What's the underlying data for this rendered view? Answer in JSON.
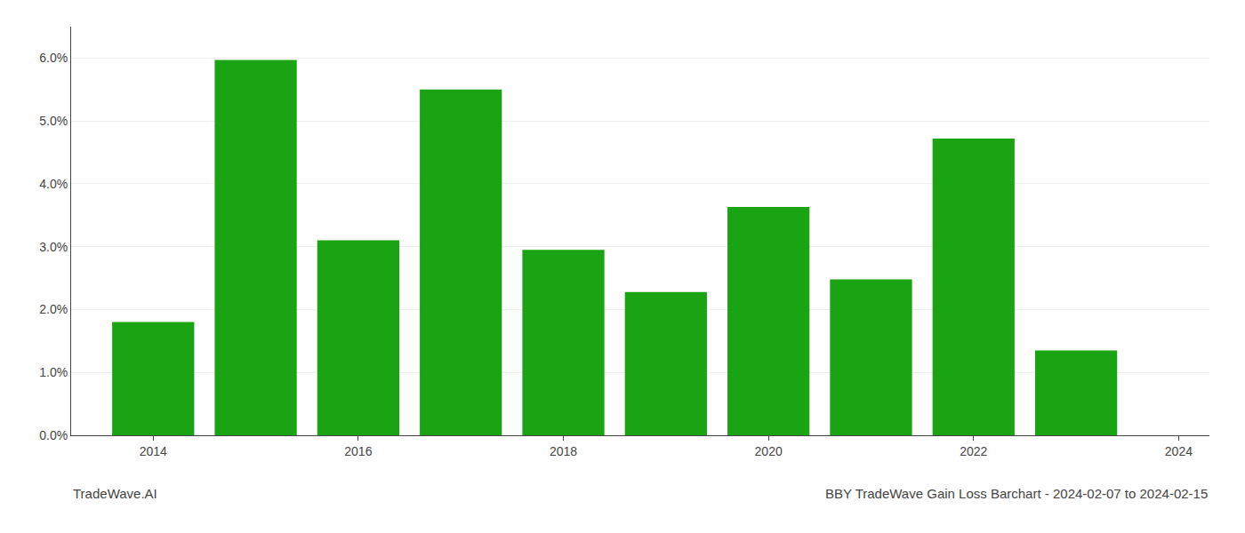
{
  "chart_data": {
    "type": "bar",
    "title": "BBY TradeWave Gain Loss Barchart - 2024-02-07 to 2024-02-15",
    "annotations": [
      "TradeWave.AI"
    ],
    "x": [
      2014,
      2015,
      2016,
      2017,
      2018,
      2019,
      2020,
      2021,
      2022,
      2023
    ],
    "values": [
      0.018,
      0.0597,
      0.031,
      0.055,
      0.0295,
      0.0228,
      0.0363,
      0.0248,
      0.0472,
      0.0135
    ],
    "color": "#1aa312",
    "xlim": [
      2013.2,
      2024.3
    ],
    "xticks": [
      2014,
      2016,
      2018,
      2020,
      2022,
      2024
    ],
    "ylim": [
      0.0,
      0.065
    ],
    "yticks": [
      {
        "value": 0.0,
        "label": "0.0%"
      },
      {
        "value": 0.01,
        "label": "1.0%"
      },
      {
        "value": 0.02,
        "label": "2.0%"
      },
      {
        "value": 0.03,
        "label": "3.0%"
      },
      {
        "value": 0.04,
        "label": "4.0%"
      },
      {
        "value": 0.05,
        "label": "5.0%"
      },
      {
        "value": 0.06,
        "label": "6.0%"
      }
    ],
    "grid": true
  }
}
